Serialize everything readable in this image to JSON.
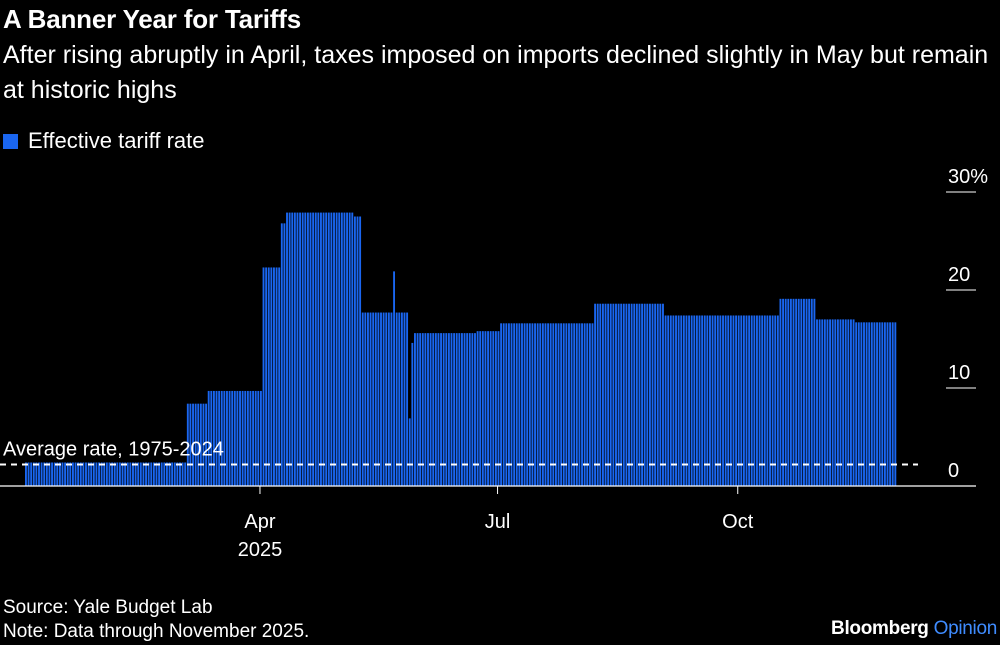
{
  "header": {
    "title": "A Banner Year for Tariffs",
    "subtitle": "After rising abruptly in April, taxes imposed on imports declined slightly in May but remain at historic highs"
  },
  "legend": {
    "label": "Effective tariff rate"
  },
  "colors": {
    "bar": "#1a66f0",
    "background": "#000000",
    "text": "#ffffff",
    "brand_accent": "#3f8cff"
  },
  "chart_data": {
    "type": "bar",
    "title": "A Banner Year for Tariffs",
    "subtitle": "After rising abruptly in April, taxes imposed on imports declined slightly in May but remain at historic highs",
    "xlabel": "",
    "ylabel": "",
    "ylim": [
      0,
      30
    ],
    "y_ticks": [
      "30%",
      "20",
      "10",
      "0"
    ],
    "y_tick_values": [
      30,
      20,
      10,
      0
    ],
    "x_tick_labels": [
      "Apr",
      "Jul",
      "Oct"
    ],
    "x_tick_dates": [
      "2025-04-01",
      "2025-07-01",
      "2025-10-01"
    ],
    "x_year_label": "2025",
    "x_range": [
      "2025-01-01",
      "2025-11-30"
    ],
    "series": [
      {
        "name": "Effective tariff rate",
        "segments": [
          {
            "start": "2025-01-01",
            "end": "2025-03-03",
            "value": 2.4
          },
          {
            "start": "2025-03-04",
            "end": "2025-03-11",
            "value": 8.4
          },
          {
            "start": "2025-03-12",
            "end": "2025-04-01",
            "value": 9.7
          },
          {
            "start": "2025-04-02",
            "end": "2025-04-08",
            "value": 22.3
          },
          {
            "start": "2025-04-09",
            "end": "2025-04-10",
            "value": 26.8
          },
          {
            "start": "2025-04-11",
            "end": "2025-05-06",
            "value": 27.9
          },
          {
            "start": "2025-05-07",
            "end": "2025-05-09",
            "value": 27.5
          },
          {
            "start": "2025-05-10",
            "end": "2025-05-21",
            "value": 17.7
          },
          {
            "start": "2025-05-22",
            "end": "2025-05-22",
            "value": 21.9
          },
          {
            "start": "2025-05-23",
            "end": "2025-05-27",
            "value": 17.7
          },
          {
            "start": "2025-05-28",
            "end": "2025-05-28",
            "value": 6.9
          },
          {
            "start": "2025-05-29",
            "end": "2025-05-29",
            "value": 14.6
          },
          {
            "start": "2025-05-30",
            "end": "2025-06-22",
            "value": 15.6
          },
          {
            "start": "2025-06-23",
            "end": "2025-07-01",
            "value": 15.8
          },
          {
            "start": "2025-07-02",
            "end": "2025-08-06",
            "value": 16.6
          },
          {
            "start": "2025-08-07",
            "end": "2025-09-02",
            "value": 18.6
          },
          {
            "start": "2025-09-03",
            "end": "2025-10-16",
            "value": 17.4
          },
          {
            "start": "2025-10-17",
            "end": "2025-10-30",
            "value": 19.1
          },
          {
            "start": "2025-10-31",
            "end": "2025-11-14",
            "value": 17.0
          },
          {
            "start": "2025-11-15",
            "end": "2025-11-30",
            "value": 16.7
          }
        ]
      }
    ],
    "reference_line": {
      "label": "Average rate, 1975-2024",
      "value": 2.2,
      "style": "dashed"
    },
    "legend_position": "top-left",
    "grid": false
  },
  "footer": {
    "source": "Source: Yale Budget Lab",
    "note": "Note: Data through November 2025.",
    "brand_name": "Bloomberg",
    "brand_section": "Opinion"
  }
}
